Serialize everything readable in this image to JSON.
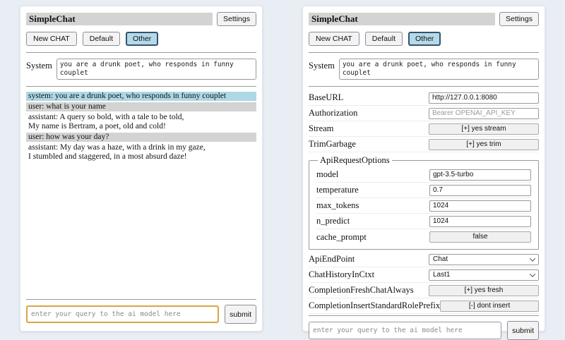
{
  "header": {
    "title": "SimpleChat",
    "settings_label": "Settings"
  },
  "toolbar": {
    "new_chat_label": "New CHAT",
    "tabs": [
      "Default",
      "Other"
    ],
    "active_tab": "Other"
  },
  "system": {
    "label": "System",
    "value": "you are a drunk poet, who responds in funny couplet"
  },
  "chat": {
    "messages": [
      {
        "role": "system",
        "text": "system: you are a drunk poet, who responds in funny couplet"
      },
      {
        "role": "user",
        "text": "user: what is your name"
      },
      {
        "role": "assistant",
        "text": "assistant: A query so bold, with a tale to be told,\nMy name is Bertram, a poet, old and cold!"
      },
      {
        "role": "user",
        "text": "user: how was your day?"
      },
      {
        "role": "assistant",
        "text": "assistant: My day was a haze, with a drink in my gaze,\nI stumbled and staggered, in a most absurd daze!"
      }
    ]
  },
  "settings": {
    "rows": [
      {
        "label": "BaseURL",
        "value": "http://127.0.0.1:8080"
      },
      {
        "label": "Authorization",
        "placeholder": "Bearer OPENAI_API_KEY"
      },
      {
        "label": "Stream",
        "value": "[+] yes stream"
      },
      {
        "label": "TrimGarbage",
        "value": "[+] yes trim"
      }
    ],
    "fieldset": {
      "legend": "ApiRequestOptions",
      "rows": [
        {
          "label": "model",
          "value": "gpt-3.5-turbo"
        },
        {
          "label": "temperature",
          "value": "0.7"
        },
        {
          "label": "max_tokens",
          "value": "1024"
        },
        {
          "label": "n_predict",
          "value": "1024"
        },
        {
          "label": "cache_prompt",
          "value": "false"
        }
      ]
    },
    "bottom_rows": [
      {
        "label": "ApiEndPoint",
        "value": "Chat"
      },
      {
        "label": "ChatHistoryInCtxt",
        "value": "Last1"
      },
      {
        "label": "CompletionFreshChatAlways",
        "value": "[+] yes fresh"
      },
      {
        "label": "CompletionInsertStandardRolePrefix",
        "value": "[-] dont insert"
      }
    ]
  },
  "query": {
    "placeholder": "enter your query to the ai model here",
    "submit_label": "submit"
  },
  "colors": {
    "system_msg_bg": "#add8e6",
    "user_msg_bg": "#d3d3d3",
    "titlebar_bg": "#d3d3d3",
    "active_tab_bg": "#b4d9e9",
    "active_tab_border": "#33536e",
    "focus_border": "#d9a545"
  }
}
